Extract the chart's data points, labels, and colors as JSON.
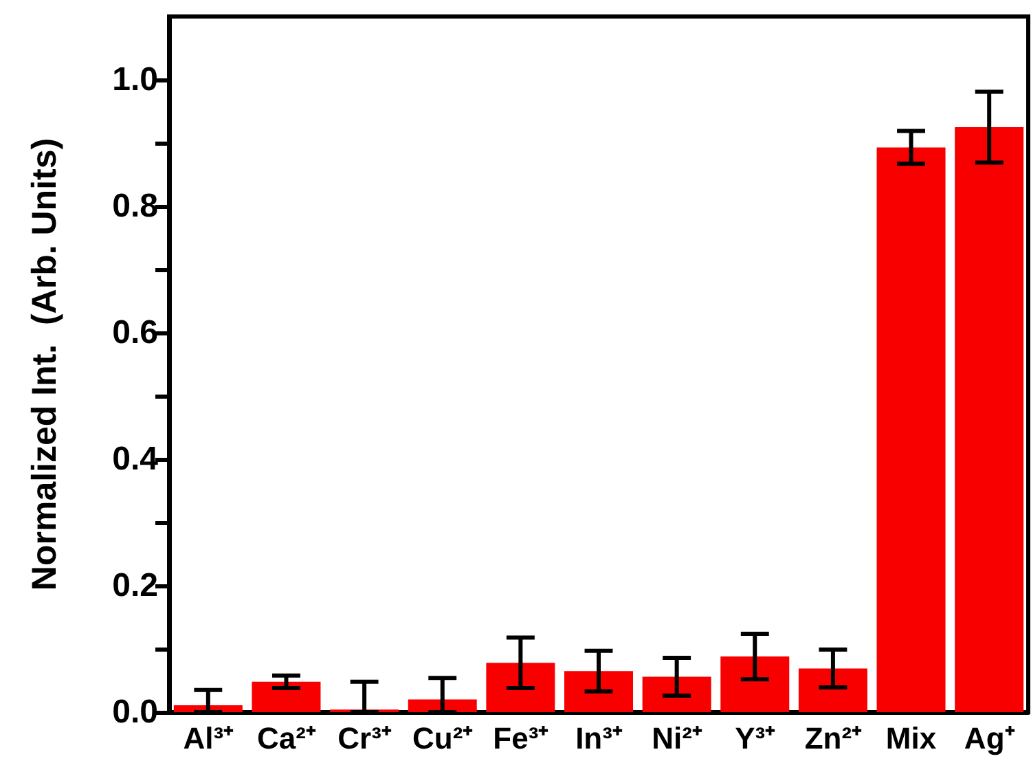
{
  "chart_data": {
    "type": "bar",
    "ylabel": "Normalized Int.  (Arb. Units)",
    "categories": [
      "Al³⁺",
      "Ca²⁺",
      "Cr³⁺",
      "Cu²⁺",
      "Fe³⁺",
      "In³⁺",
      "Ni²⁺",
      "Y³⁺",
      "Zn²⁺",
      "Mix",
      "Ag⁺"
    ],
    "values": [
      0.011,
      0.048,
      0.004,
      0.02,
      0.078,
      0.065,
      0.056,
      0.088,
      0.069,
      0.893,
      0.925
    ],
    "errors": [
      [
        0,
        0.035
      ],
      0.01,
      [
        0,
        0.048
      ],
      [
        0,
        0.054
      ],
      0.04,
      0.032,
      0.03,
      0.036,
      0.03,
      0.026,
      0.056
    ],
    "color": "#f80000",
    "ylim": [
      0,
      1.1
    ],
    "yticks": [
      {
        "value": 0,
        "label": "0.0"
      },
      {
        "value": 0.1,
        "label": null
      },
      {
        "value": 0.2,
        "label": "0.2"
      },
      {
        "value": 0.3,
        "label": null
      },
      {
        "value": 0.4,
        "label": "0.4"
      },
      {
        "value": 0.5,
        "label": null
      },
      {
        "value": 0.6,
        "label": "0.6"
      },
      {
        "value": 0.7,
        "label": null
      },
      {
        "value": 0.8,
        "label": "0.8"
      },
      {
        "value": 0.9,
        "label": null
      },
      {
        "value": 1,
        "label": "1.0"
      }
    ],
    "grid": false
  }
}
